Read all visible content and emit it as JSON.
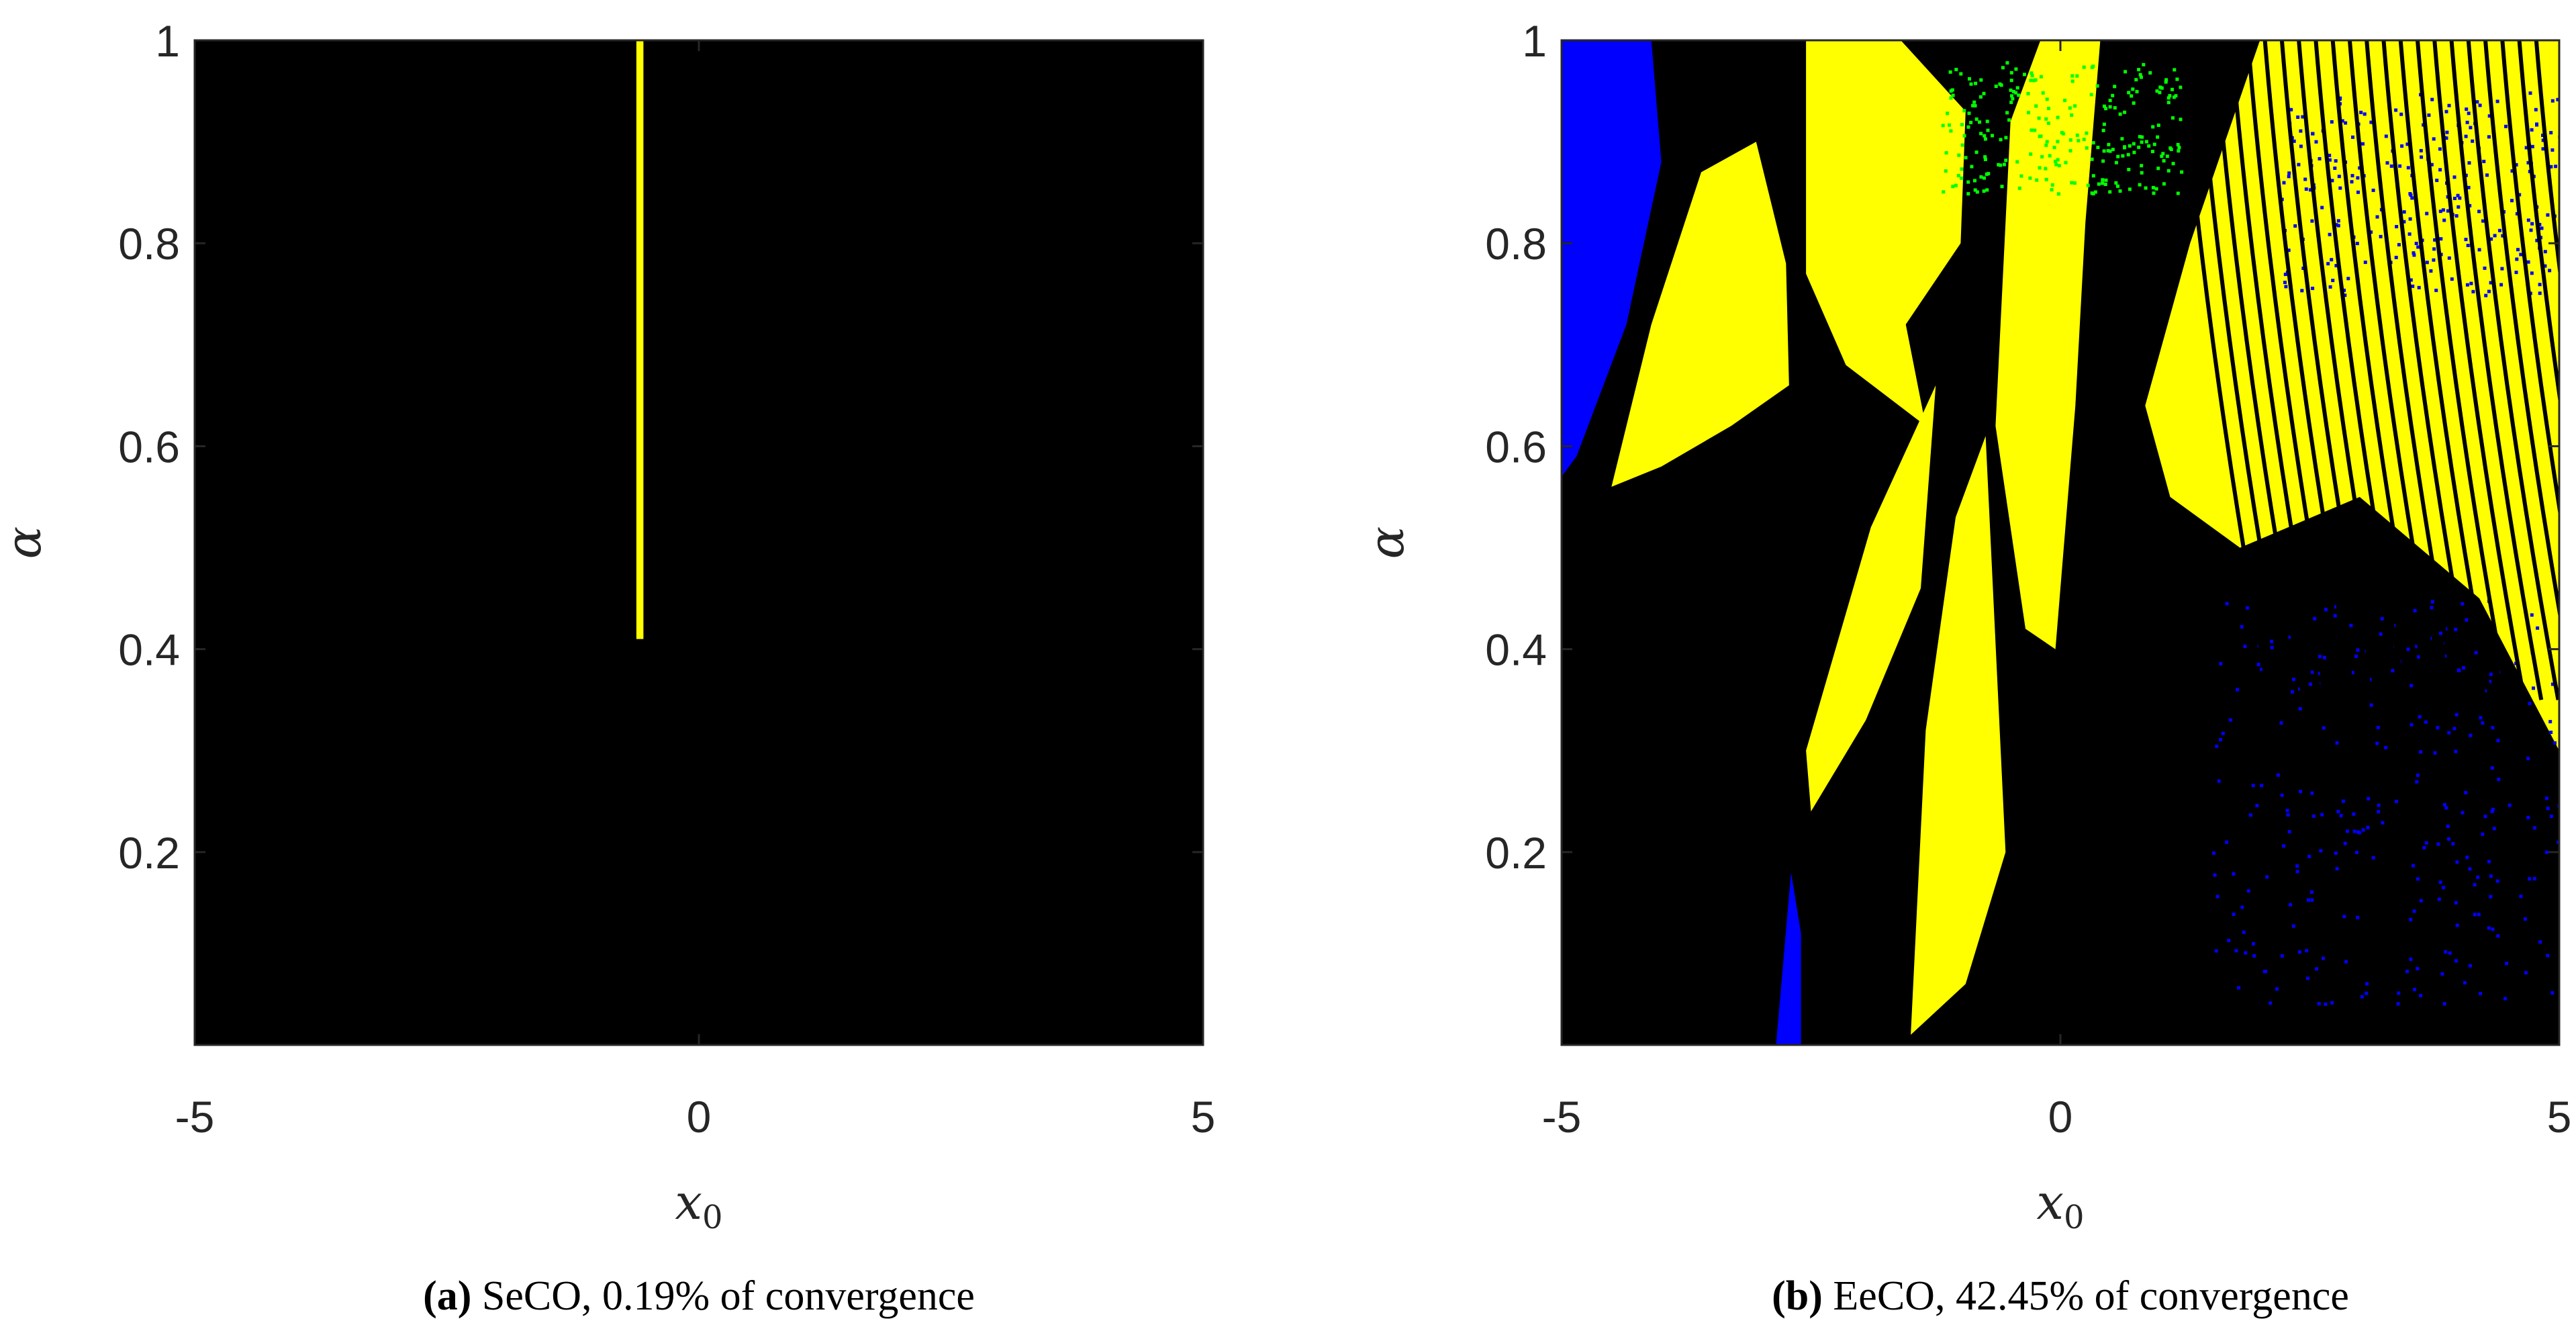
{
  "colors": {
    "background": "#000000",
    "converge_to_root_1": "#ffff00",
    "converge_to_root_2": "#0000ff",
    "converge_to_root_3": "#00ff00",
    "axis": "#262626"
  },
  "chart_data": [
    {
      "type": "heatmap",
      "panel": "a",
      "caption": {
        "letter": "(a)",
        "text": " SeCO, 0.19% of convergence"
      },
      "xlabel": "x",
      "xlabel_sub": "0",
      "ylabel": "α",
      "xlim": [
        -5,
        5
      ],
      "ylim": [
        0.01,
        1
      ],
      "xticks": [
        -5,
        0,
        5
      ],
      "xtick_labels": [
        "-5",
        "0",
        "5"
      ],
      "yticks": [
        0.2,
        0.4,
        0.6,
        0.8,
        1
      ],
      "ytick_labels": [
        "0.2",
        "0.4",
        "0.6",
        "0.8",
        "1"
      ],
      "convergence_percent": 0.19,
      "regions": [
        {
          "color": "#ffff00",
          "x_range": [
            -0.62,
            -0.55
          ],
          "y_range": [
            0.41,
            1.0
          ]
        }
      ]
    },
    {
      "type": "heatmap",
      "panel": "b",
      "caption": {
        "letter": "(b)",
        "text": " EeCO, 42.45% of convergence"
      },
      "xlabel": "x",
      "xlabel_sub": "0",
      "ylabel": "α",
      "xlim": [
        -5,
        5
      ],
      "ylim": [
        0.01,
        1
      ],
      "xticks": [
        -5,
        0,
        5
      ],
      "xtick_labels": [
        "-5",
        "0",
        "5"
      ],
      "yticks": [
        0.2,
        0.4,
        0.6,
        0.8,
        1
      ],
      "ytick_labels": [
        "0.2",
        "0.4",
        "0.6",
        "0.8",
        "1"
      ],
      "convergence_percent": 42.45,
      "regions": [
        {
          "color": "#0000ff",
          "shape": "corner",
          "points": [
            [
              -5,
              1
            ],
            [
              -4.1,
              1
            ],
            [
              -4.0,
              0.88
            ],
            [
              -4.35,
              0.72
            ],
            [
              -4.85,
              0.59
            ],
            [
              -5,
              0.57
            ]
          ]
        },
        {
          "color": "#ffff00",
          "shape": "lobe",
          "points": [
            [
              -4.5,
              0.56
            ],
            [
              -4.1,
              0.72
            ],
            [
              -3.6,
              0.87
            ],
            [
              -3.05,
              0.9
            ],
            [
              -2.75,
              0.78
            ],
            [
              -2.72,
              0.66
            ],
            [
              -3.3,
              0.62
            ],
            [
              -4.0,
              0.58
            ]
          ]
        },
        {
          "color": "#ffff00",
          "shape": "lobe",
          "points": [
            [
              -2.55,
              1
            ],
            [
              -1.6,
              1
            ],
            [
              -0.95,
              0.93
            ],
            [
              -1.0,
              0.8
            ],
            [
              -1.55,
              0.72
            ],
            [
              -1.35,
              0.62
            ],
            [
              -2.15,
              0.68
            ],
            [
              -2.55,
              0.77
            ]
          ]
        },
        {
          "color": "#ffff00",
          "shape": "lobe",
          "points": [
            [
              -2.55,
              0.3
            ],
            [
              -1.9,
              0.52
            ],
            [
              -1.25,
              0.66
            ],
            [
              -1.4,
              0.46
            ],
            [
              -1.95,
              0.33
            ],
            [
              -2.5,
              0.24
            ]
          ]
        },
        {
          "color": "#ffff00",
          "shape": "lobe",
          "points": [
            [
              -1.5,
              0.02
            ],
            [
              -1.35,
              0.32
            ],
            [
              -1.05,
              0.53
            ],
            [
              -0.75,
              0.61
            ],
            [
              -0.55,
              0.2
            ],
            [
              -0.95,
              0.07
            ]
          ]
        },
        {
          "color": "#ffff00",
          "shape": "lobe",
          "points": [
            [
              -0.65,
              0.62
            ],
            [
              -0.5,
              0.92
            ],
            [
              -0.2,
              1
            ],
            [
              0.4,
              1
            ],
            [
              0.25,
              0.82
            ],
            [
              0.15,
              0.64
            ],
            [
              -0.05,
              0.4
            ],
            [
              -0.35,
              0.42
            ]
          ]
        },
        {
          "color": "#ffff00",
          "shape": "lobe",
          "points": [
            [
              0.85,
              0.64
            ],
            [
              1.3,
              0.8
            ],
            [
              2.0,
              1
            ],
            [
              5,
              1
            ],
            [
              5,
              0.3
            ],
            [
              4.2,
              0.45
            ],
            [
              3.0,
              0.55
            ],
            [
              1.8,
              0.5
            ],
            [
              1.1,
              0.55
            ]
          ]
        },
        {
          "color": "#0000ff",
          "shape": "sliver",
          "points": [
            [
              -2.85,
              0.01
            ],
            [
              -2.7,
              0.18
            ],
            [
              -2.6,
              0.12
            ],
            [
              -2.6,
              0.01
            ]
          ]
        },
        {
          "color": "#0000ff",
          "shape": "speckle",
          "x_range": [
            1.5,
            5
          ],
          "y_range": [
            0.05,
            0.45
          ]
        },
        {
          "color": "#0000ff",
          "shape": "speckle",
          "x_range": [
            2.2,
            5
          ],
          "y_range": [
            0.75,
            0.95
          ]
        },
        {
          "color": "#00ff00",
          "shape": "speckle",
          "x_range": [
            -1.2,
            1.2
          ],
          "y_range": [
            0.85,
            0.98
          ]
        }
      ]
    }
  ]
}
